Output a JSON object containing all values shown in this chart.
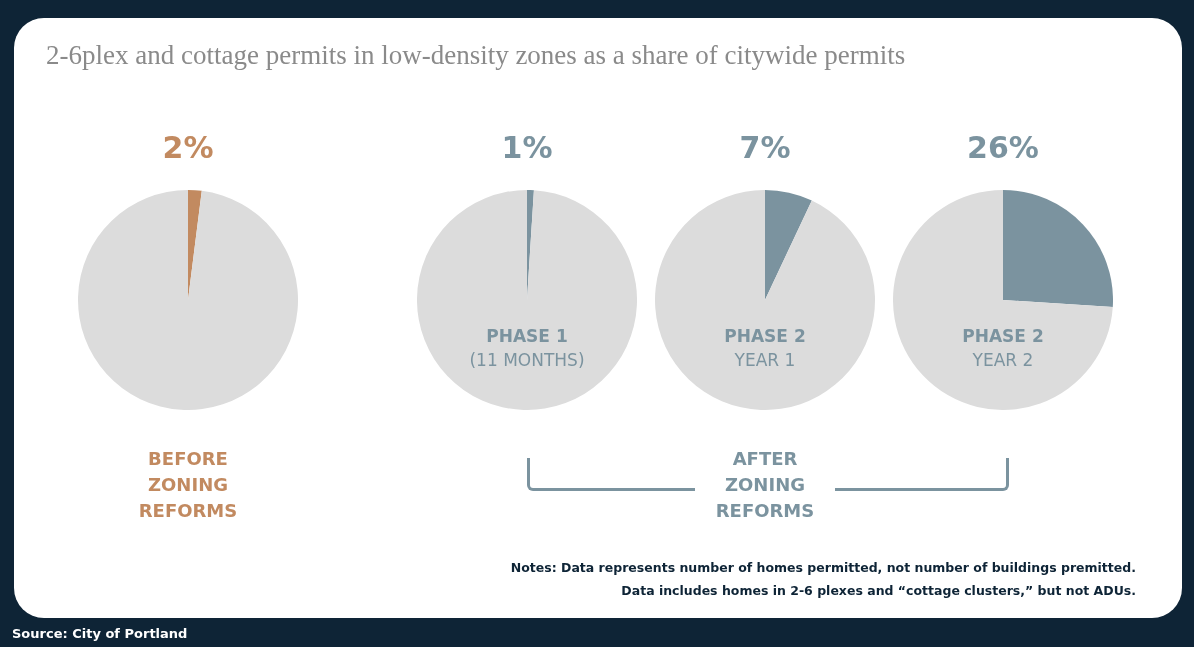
{
  "chart_data": [
    {
      "type": "pie",
      "title": "2-6plex and cottage permits in low-density zones as a share of citywide permits",
      "categories": [
        null,
        null
      ],
      "values": [
        2,
        98
      ],
      "colors": [
        "#c28a60",
        "#dcdcdc"
      ],
      "value_labels": [
        "2%",
        null
      ],
      "xlabel": "BEFORE ZONING REFORMS",
      "legend": false
    },
    {
      "type": "pie",
      "categories": [
        null,
        null
      ],
      "values": [
        1,
        99
      ],
      "colors": [
        "#7b939f",
        "#dcdcdc"
      ],
      "value_labels": [
        "1%",
        null
      ],
      "annotations": [
        "PHASE 1",
        "(11 MONTHS)"
      ],
      "legend": false
    },
    {
      "type": "pie",
      "categories": [
        null,
        null
      ],
      "values": [
        7,
        93
      ],
      "colors": [
        "#7b939f",
        "#dcdcdc"
      ],
      "value_labels": [
        "7%",
        null
      ],
      "annotations": [
        "PHASE 2",
        "YEAR 1"
      ],
      "xlabel": "AFTER ZONING REFORMS",
      "legend": false
    },
    {
      "type": "pie",
      "categories": [
        null,
        null
      ],
      "values": [
        26,
        74
      ],
      "colors": [
        "#7b939f",
        "#dcdcdc"
      ],
      "value_labels": [
        "26%",
        null
      ],
      "annotations": [
        "PHASE 2",
        "YEAR 2",
        "Notes: Data represents number of homes permitted, not number of buildings premitted.",
        "Data includes homes in 2-6 plexes and “cottage clusters,” but not ADUs.",
        "Source: City of Portland"
      ],
      "legend": false
    }
  ]
}
